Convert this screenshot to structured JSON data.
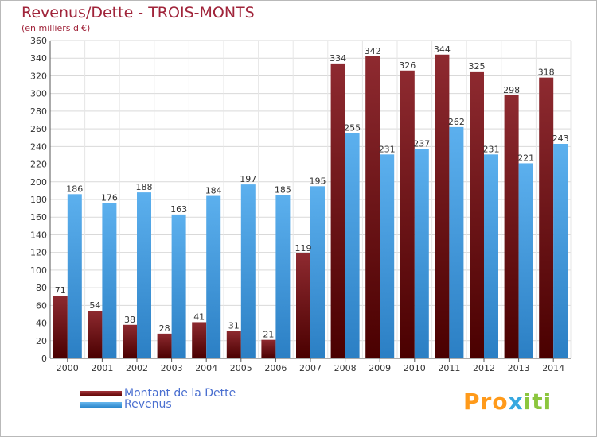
{
  "title": "Revenus/Dette - TROIS-MONTS",
  "subtitle": "(en milliers d'€)",
  "logo_text": "Proxiti",
  "legend": {
    "dette_label": "Montant de la Dette",
    "revenus_label": "Revenus"
  },
  "colors": {
    "dette": "#7a1a1e",
    "revenus": "#4aa3e6",
    "title": "#a0243a",
    "legend_text": "#4a6fd0"
  },
  "chart_data": {
    "type": "bar",
    "title": "Revenus/Dette - TROIS-MONTS",
    "subtitle": "(en milliers d'€)",
    "categories": [
      "2000",
      "2001",
      "2002",
      "2003",
      "2004",
      "2005",
      "2006",
      "2007",
      "2008",
      "2009",
      "2010",
      "2011",
      "2012",
      "2013",
      "2014"
    ],
    "series": [
      {
        "name": "Montant de la Dette",
        "values": [
          71,
          54,
          38,
          28,
          41,
          31,
          21,
          119,
          334,
          342,
          326,
          344,
          325,
          298,
          318
        ]
      },
      {
        "name": "Revenus",
        "values": [
          186,
          176,
          188,
          163,
          184,
          197,
          185,
          195,
          255,
          231,
          237,
          262,
          231,
          221,
          243
        ]
      }
    ],
    "ylim": [
      0,
      360
    ],
    "yticks": [
      0,
      20,
      40,
      60,
      80,
      100,
      120,
      140,
      160,
      180,
      200,
      220,
      240,
      260,
      280,
      300,
      320,
      340,
      360
    ],
    "grid": true,
    "legend_position": "bottom-left"
  }
}
